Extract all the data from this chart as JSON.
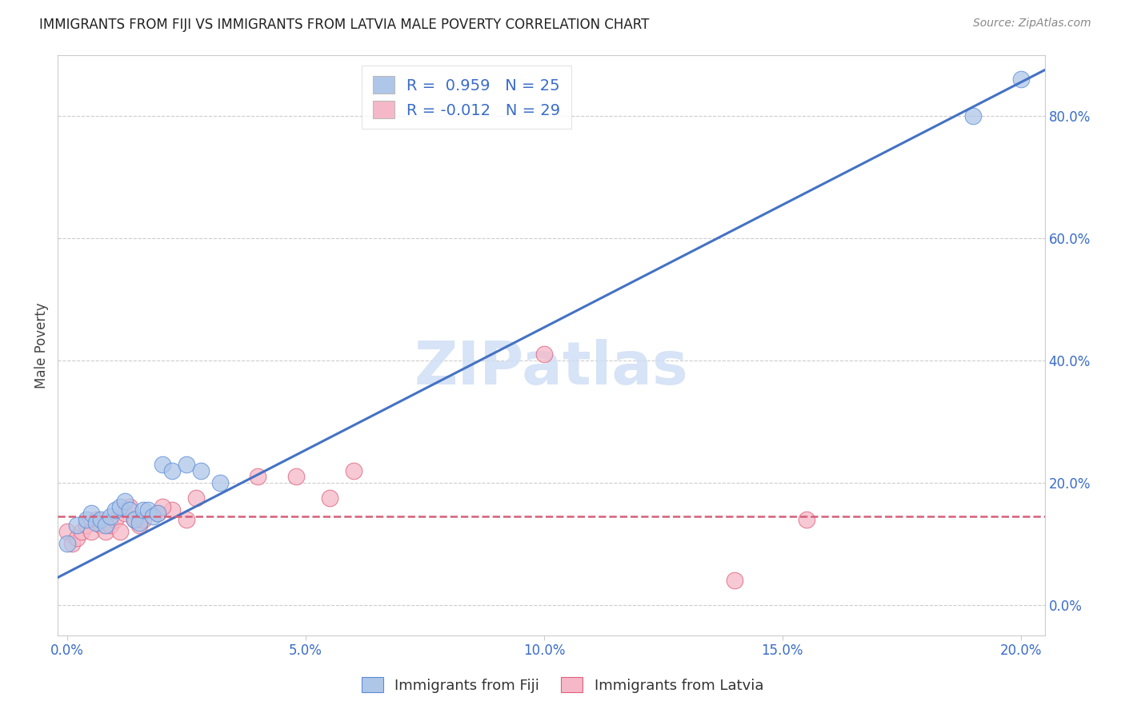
{
  "title": "IMMIGRANTS FROM FIJI VS IMMIGRANTS FROM LATVIA MALE POVERTY CORRELATION CHART",
  "source": "Source: ZipAtlas.com",
  "xlabel": "",
  "ylabel": "Male Poverty",
  "xlim_min": -0.002,
  "xlim_max": 0.205,
  "ylim_min": -0.05,
  "ylim_max": 0.9,
  "x_ticks": [
    0.0,
    0.05,
    0.1,
    0.15,
    0.2
  ],
  "y_ticks": [
    0.0,
    0.2,
    0.4,
    0.6,
    0.8
  ],
  "fiji_R": 0.959,
  "fiji_N": 25,
  "latvia_R": -0.012,
  "latvia_N": 29,
  "fiji_color": "#aec6e8",
  "fiji_edge_color": "#5b8dd9",
  "fiji_line_color": "#4472c4",
  "latvia_color": "#f5b8c8",
  "latvia_edge_color": "#e0607a",
  "latvia_line_color": "#d45f78",
  "watermark_color": "#d0dff5",
  "fiji_x": [
    0.0,
    0.002,
    0.004,
    0.005,
    0.006,
    0.007,
    0.008,
    0.009,
    0.01,
    0.011,
    0.012,
    0.013,
    0.014,
    0.015,
    0.016,
    0.017,
    0.018,
    0.019,
    0.02,
    0.022,
    0.025,
    0.028,
    0.032,
    0.19,
    0.2
  ],
  "fiji_y": [
    0.1,
    0.13,
    0.14,
    0.15,
    0.135,
    0.14,
    0.13,
    0.145,
    0.155,
    0.16,
    0.17,
    0.155,
    0.14,
    0.135,
    0.155,
    0.155,
    0.145,
    0.15,
    0.23,
    0.22,
    0.23,
    0.22,
    0.2,
    0.8,
    0.86
  ],
  "latvia_x": [
    0.0,
    0.001,
    0.002,
    0.003,
    0.004,
    0.005,
    0.006,
    0.007,
    0.008,
    0.009,
    0.01,
    0.011,
    0.012,
    0.013,
    0.014,
    0.015,
    0.016,
    0.019,
    0.022,
    0.025,
    0.048,
    0.055,
    0.155,
    0.02,
    0.027,
    0.04,
    0.06,
    0.1,
    0.14
  ],
  "latvia_y": [
    0.12,
    0.1,
    0.11,
    0.12,
    0.13,
    0.12,
    0.14,
    0.13,
    0.12,
    0.13,
    0.14,
    0.12,
    0.15,
    0.16,
    0.14,
    0.13,
    0.14,
    0.15,
    0.155,
    0.14,
    0.21,
    0.175,
    0.14,
    0.16,
    0.175,
    0.21,
    0.22,
    0.41,
    0.04
  ],
  "fiji_line_x0": -0.002,
  "fiji_line_x1": 0.205,
  "fiji_line_y0": 0.045,
  "fiji_line_y1": 0.875,
  "latvia_line_y": 0.145
}
